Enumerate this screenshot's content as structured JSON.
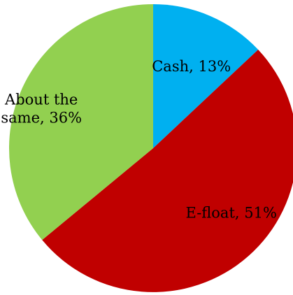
{
  "chart_data": {
    "type": "pie",
    "title": "",
    "slices": [
      {
        "label": "Cash, 13%",
        "value": 13,
        "color": "#00b0f0"
      },
      {
        "label": "E-float, 51%",
        "value": 51,
        "color": "#c00000"
      },
      {
        "label": "About the same, 36%",
        "value": 36,
        "color": "#92d050"
      }
    ],
    "legend": "none",
    "start_angle": "12 o'clock",
    "direction": "clockwise"
  }
}
